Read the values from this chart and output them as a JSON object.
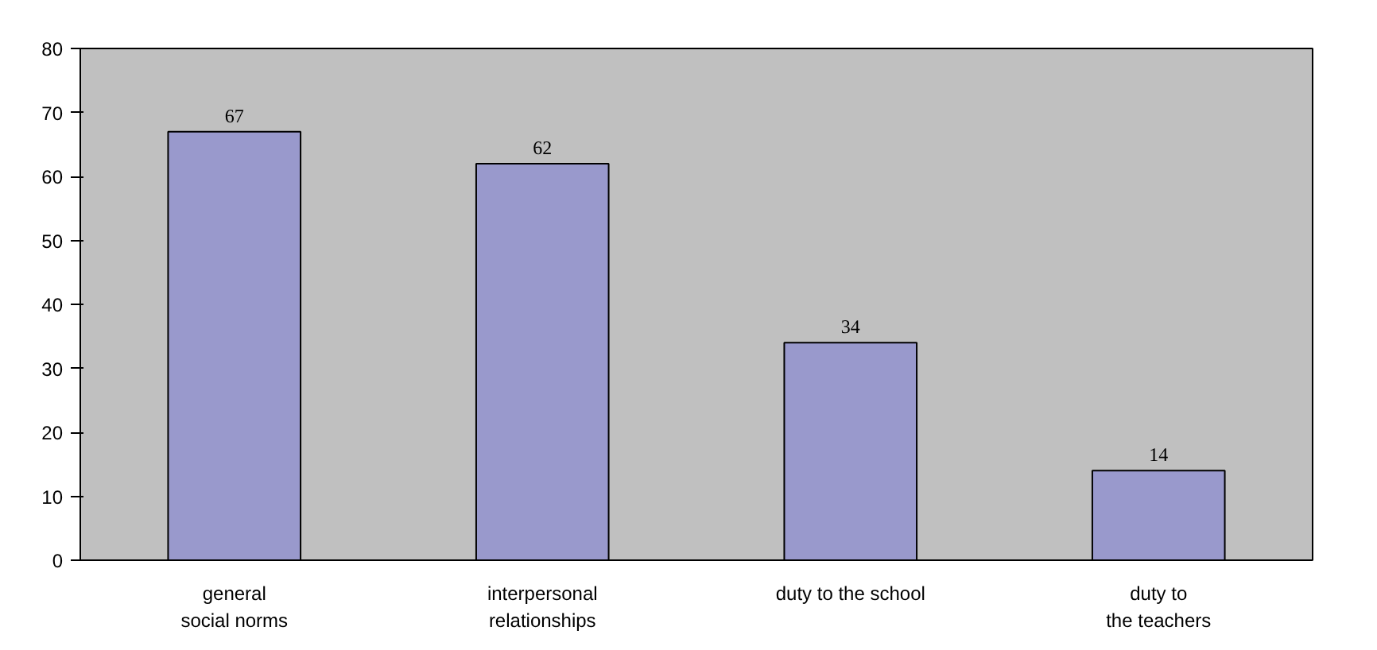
{
  "chart_data": {
    "type": "bar",
    "categories": [
      "general\nsocial norms",
      "interpersonal\nrelationships",
      "duty to the school",
      "duty to\nthe teachers"
    ],
    "values": [
      67,
      62,
      34,
      14
    ],
    "color": "#9999cc",
    "ylim": [
      0,
      80
    ],
    "yticks": [
      0,
      10,
      20,
      30,
      40,
      50,
      60,
      70,
      80
    ],
    "grid": false,
    "data_labels": true
  }
}
